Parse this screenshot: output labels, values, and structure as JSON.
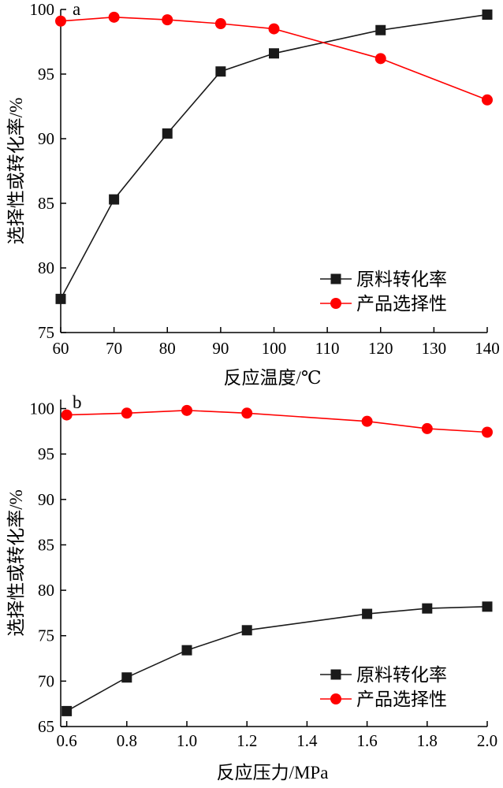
{
  "chart_data": [
    {
      "type": "line",
      "panel_label": "a",
      "xlabel": "反应温度/℃",
      "ylabel": "选择性或转化率/%",
      "xlim": [
        60,
        140
      ],
      "ylim": [
        75,
        100
      ],
      "xticks": [
        60,
        70,
        80,
        90,
        100,
        110,
        120,
        130,
        140
      ],
      "yticks": [
        75,
        80,
        85,
        90,
        95,
        100
      ],
      "grid": false,
      "legend_position": "bottom-right",
      "series": [
        {
          "name": "原料转化率",
          "marker": "square",
          "color": "#1a1a1a",
          "x": [
            60,
            70,
            80,
            90,
            100,
            120,
            140
          ],
          "y": [
            77.6,
            85.3,
            90.4,
            95.2,
            96.6,
            98.4,
            99.6
          ]
        },
        {
          "name": "产品选择性",
          "marker": "circle",
          "color": "#ff0000",
          "x": [
            60,
            70,
            80,
            90,
            100,
            120,
            140
          ],
          "y": [
            99.1,
            99.4,
            99.2,
            98.9,
            98.5,
            96.2,
            93.0
          ]
        }
      ]
    },
    {
      "type": "line",
      "panel_label": "b",
      "xlabel": "反应压力/MPa",
      "ylabel": "选择性或转化率/%",
      "xlim": [
        0.58,
        2.0
      ],
      "ylim": [
        65,
        101
      ],
      "xticks": [
        "0.6",
        "0.8",
        "1.0",
        "1.2",
        "1.4",
        "1.6",
        "1.8",
        "2.0"
      ],
      "yticks": [
        65,
        70,
        75,
        80,
        85,
        90,
        95,
        100
      ],
      "grid": false,
      "legend_position": "bottom-right",
      "series": [
        {
          "name": "原料转化率",
          "marker": "square",
          "color": "#1a1a1a",
          "x": [
            0.6,
            0.8,
            1.0,
            1.2,
            1.6,
            1.8,
            2.0
          ],
          "y": [
            66.7,
            70.4,
            73.4,
            75.6,
            77.4,
            78.0,
            78.2
          ]
        },
        {
          "name": "产品选择性",
          "marker": "circle",
          "color": "#ff0000",
          "x": [
            0.6,
            0.8,
            1.0,
            1.2,
            1.6,
            1.8,
            2.0
          ],
          "y": [
            99.3,
            99.5,
            99.8,
            99.5,
            98.6,
            97.8,
            97.4
          ]
        }
      ]
    }
  ]
}
